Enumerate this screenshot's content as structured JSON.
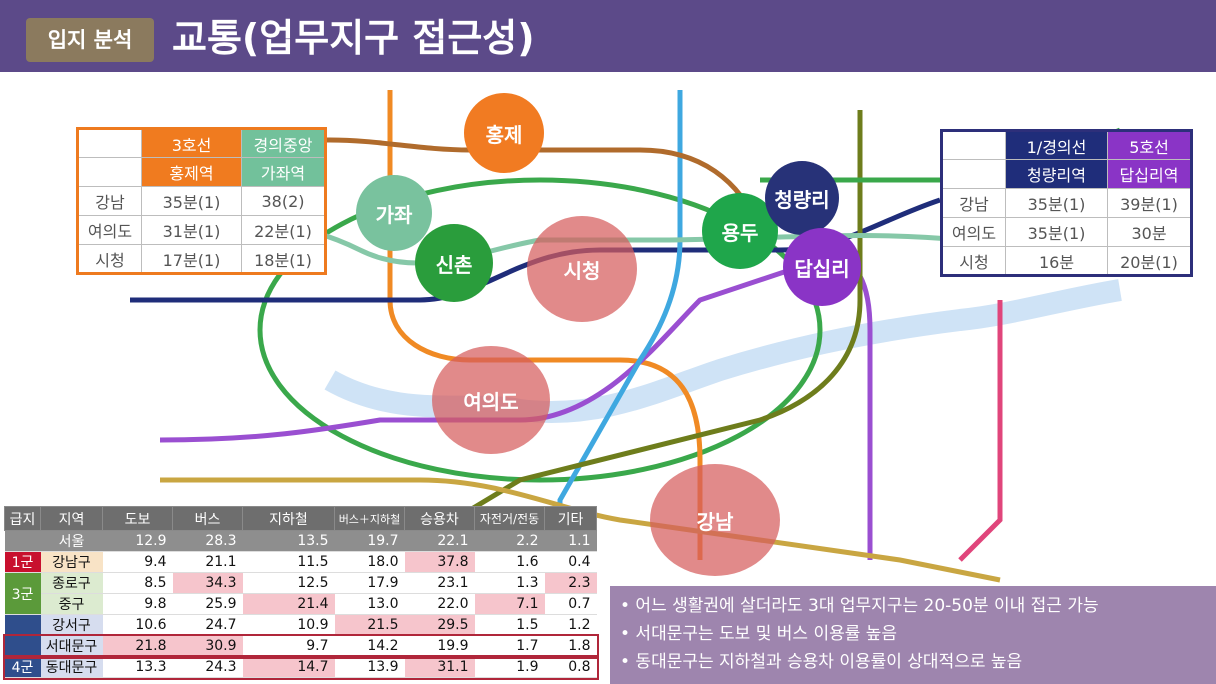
{
  "header": {
    "badge": "입지 분석",
    "title": "교통(업무지구 접근성)"
  },
  "circles": {
    "hongje": "홍제",
    "gajwa": "가좌",
    "sinchon": "신촌",
    "sicheong": "시청",
    "yongdu": "용두",
    "cheongnyangni": "청량리",
    "dapsimni": "답십리",
    "yeouido": "여의도",
    "gangnam": "강남"
  },
  "table_left": {
    "h1": "3호선",
    "h2": "경의중앙",
    "s1": "홍제역",
    "s2": "가좌역",
    "rows": [
      {
        "dest": "강남",
        "a": "35분(1)",
        "b": "38(2)"
      },
      {
        "dest": "여의도",
        "a": "31분(1)",
        "b": "22분(1)"
      },
      {
        "dest": "시청",
        "a": "17분(1)",
        "b": "18분(1)"
      }
    ]
  },
  "table_right": {
    "h1": "1/경의선",
    "h2": "5호선",
    "s1": "청량리역",
    "s2": "답십리역",
    "rows": [
      {
        "dest": "강남",
        "a": "35분(1)",
        "b": "39분(1)"
      },
      {
        "dest": "여의도",
        "a": "35분(1)",
        "b": "30분"
      },
      {
        "dest": "시청",
        "a": "16분",
        "b": "20분(1)"
      }
    ]
  },
  "stats": {
    "headers": [
      "급지",
      "지역",
      "도보",
      "버스",
      "지하철",
      "버스＋지하철",
      "승용차",
      "자전거/전동",
      "기타"
    ],
    "rows": [
      {
        "grade": "",
        "region": "서울",
        "v": [
          "12.9",
          "28.3",
          "13.5",
          "19.7",
          "22.1",
          "2.2",
          "1.1"
        ]
      },
      {
        "grade": "1군",
        "region": "강남구",
        "v": [
          "9.4",
          "21.1",
          "11.5",
          "18.0",
          "37.8",
          "1.6",
          "0.4"
        ]
      },
      {
        "grade": "3군",
        "region": "종로구",
        "v": [
          "8.5",
          "34.3",
          "12.5",
          "17.9",
          "23.1",
          "1.3",
          "2.3"
        ]
      },
      {
        "grade": "",
        "region": "중구",
        "v": [
          "9.8",
          "25.9",
          "21.4",
          "13.0",
          "22.0",
          "7.1",
          "0.7"
        ]
      },
      {
        "grade": "",
        "region": "강서구",
        "v": [
          "10.6",
          "24.7",
          "10.9",
          "21.5",
          "29.5",
          "1.5",
          "1.2"
        ]
      },
      {
        "grade": "4군",
        "region": "서대문구",
        "v": [
          "21.8",
          "30.9",
          "9.7",
          "14.2",
          "19.9",
          "1.7",
          "1.8"
        ]
      },
      {
        "grade": "",
        "region": "동대문구",
        "v": [
          "13.3",
          "24.3",
          "14.7",
          "13.9",
          "31.1",
          "1.9",
          "0.8"
        ]
      }
    ]
  },
  "bullets": [
    "• 어느 생활권에 살더라도 3대 업무지구는 20-50분 이내 접근 가능",
    "• 서대문구는 도보  및 버스 이용률 높음",
    "• 동대문구는 지하철과 승용차 이용률이 상대적으로 높음"
  ],
  "colors": {
    "header_bg": "#5c4a89",
    "line3": "#ee7a1f",
    "gyeongui": "#72c19b",
    "line1": "#2d2f7a",
    "line5": "#8a34c6",
    "highlight": "#f6c5cc"
  }
}
